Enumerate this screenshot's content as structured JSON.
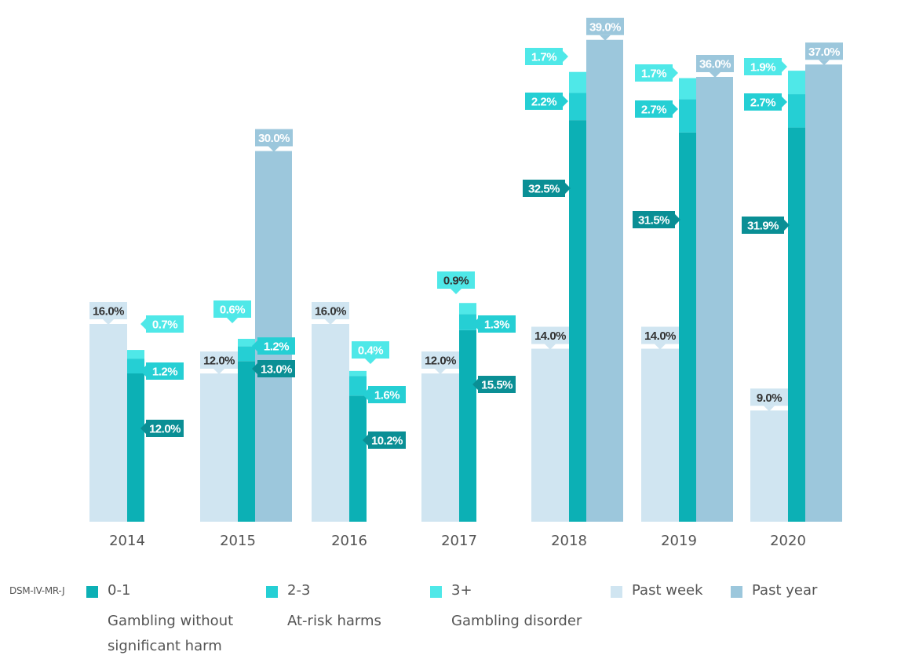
{
  "chart_data": {
    "type": "bar",
    "categories": [
      "2014",
      "2015",
      "2016",
      "2017",
      "2018",
      "2019",
      "2020"
    ],
    "ylim": [
      0,
      40
    ],
    "grid": false,
    "legend_placement": "bottom",
    "past_week": [
      16.0,
      12.0,
      16.0,
      12.0,
      14.0,
      14.0,
      9.0
    ],
    "past_year": [
      null,
      30.0,
      null,
      null,
      39.0,
      36.0,
      37.0
    ],
    "dsm": {
      "r0_1": [
        12.0,
        13.0,
        10.2,
        15.5,
        32.5,
        31.5,
        31.9
      ],
      "r2_3": [
        1.2,
        1.2,
        1.6,
        1.3,
        2.2,
        2.7,
        2.7
      ],
      "r3_plus": [
        0.7,
        0.6,
        0.4,
        0.9,
        1.7,
        1.7,
        1.9
      ]
    },
    "colors": {
      "past_week": "#d0e5f1",
      "past_year": "#9cc7dc",
      "r0_1": "#0cb0b5",
      "r2_3": "#25cfd4",
      "r3_plus": "#4fe8e8",
      "label_dark": "#0a8f95",
      "label_text_light": "#ffffff",
      "label_text_dark": "#333333"
    }
  },
  "legend": {
    "title": "DSM-IV-MR-J",
    "items": [
      {
        "key": "0-1",
        "desc": "Gambling without significant harm"
      },
      {
        "key": "2-3",
        "desc": "At-risk harms"
      },
      {
        "key": "3+",
        "desc": "Gambling disorder"
      },
      {
        "key": "Past week",
        "desc": ""
      },
      {
        "key": "Past year",
        "desc": ""
      }
    ]
  }
}
